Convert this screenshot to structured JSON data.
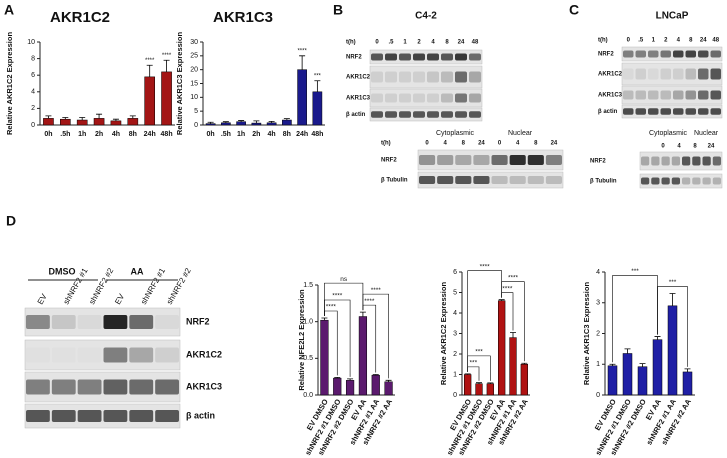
{
  "panels": {
    "a": "A",
    "b": "B",
    "c": "C",
    "d": "D"
  },
  "chart_data": [
    {
      "type": "bar",
      "title": "AKR1C2",
      "y_label": "Relative AKR1C2 Expression",
      "color": "#a31515",
      "categories": [
        "0h",
        ".5h",
        "1h",
        "2h",
        "4h",
        "8h",
        "24h",
        "48h"
      ],
      "values": [
        0.8,
        0.7,
        0.6,
        0.8,
        0.5,
        0.8,
        5.8,
        6.4
      ],
      "errors": [
        0.3,
        0.2,
        0.3,
        0.5,
        0.2,
        0.3,
        1.4,
        1.4
      ],
      "significance": [
        null,
        null,
        null,
        null,
        null,
        null,
        "****",
        "****"
      ],
      "ylim": [
        0,
        10
      ],
      "yticks": [
        0,
        2,
        4,
        6,
        8,
        10
      ]
    },
    {
      "type": "bar",
      "title": "AKR1C3",
      "y_label": "Relative AKR1C3 Expression",
      "color": "#1a1a8c",
      "categories": [
        "0h",
        ".5h",
        "1h",
        "2h",
        "4h",
        "8h",
        "24h",
        "48h"
      ],
      "values": [
        0.5,
        0.8,
        1.2,
        0.7,
        0.8,
        1.8,
        20,
        12
      ],
      "errors": [
        0.5,
        0.4,
        0.4,
        0.8,
        0.5,
        0.5,
        5,
        4
      ],
      "significance": [
        null,
        null,
        null,
        null,
        null,
        null,
        "****",
        "***"
      ],
      "ylim": [
        0,
        30
      ],
      "yticks": [
        0,
        5,
        10,
        15,
        20,
        25,
        30
      ]
    },
    {
      "type": "bar",
      "y_label": "Relative NFE2L2 Expression",
      "color": "#5b1a6e",
      "categories": [
        "EV DMSO",
        "shNRF2 #1 DMSO",
        "shNRF2 #2 DMSO",
        "EV AA",
        "shNRF2 #1 AA",
        "shNRF2 #2 AA"
      ],
      "values": [
        1.02,
        0.23,
        0.2,
        1.07,
        0.27,
        0.18
      ],
      "errors": [
        0.03,
        0.01,
        0.02,
        0.06,
        0.01,
        0.02
      ],
      "comparisons": [
        {
          "from": 0,
          "to": 1,
          "label": "****"
        },
        {
          "from": 3,
          "to": 4,
          "label": "****"
        },
        {
          "from": 0,
          "to": 2,
          "label": "****"
        },
        {
          "from": 3,
          "to": 5,
          "label": "****"
        },
        {
          "from": 0,
          "to": 3,
          "label": "ns"
        }
      ],
      "ylim": [
        0,
        1.5
      ],
      "yticks": [
        {
          "value": 0,
          "label": "0.0"
        },
        0.5,
        {
          "value": 1,
          "label": "1.0"
        },
        1.5
      ]
    },
    {
      "type": "bar",
      "y_label": "Relative AKR1C2 Expression",
      "color": "#b01212",
      "categories": [
        "EV DMSO",
        "shNRF2 #1 DMSO",
        "shNRF2 #2 DMSO",
        "EV AA",
        "shNRF2 #1 AA",
        "shNRF2 #2 AA"
      ],
      "values": [
        1.0,
        0.55,
        0.55,
        4.6,
        2.8,
        1.5
      ],
      "errors": [
        0.03,
        0.05,
        0.04,
        0.05,
        0.25,
        0.05
      ],
      "comparisons": [
        {
          "from": 0,
          "to": 1,
          "label": "***"
        },
        {
          "from": 3,
          "to": 4,
          "label": "****"
        },
        {
          "from": 0,
          "to": 2,
          "label": "***"
        },
        {
          "from": 3,
          "to": 5,
          "label": "****"
        },
        {
          "from": 0,
          "to": 3,
          "label": "****"
        }
      ],
      "ylim": [
        0,
        6
      ],
      "yticks": [
        0,
        1,
        2,
        3,
        4,
        5,
        6
      ]
    },
    {
      "type": "bar",
      "y_label": "Relative AKR1C3 Expression",
      "color": "#1f1fa5",
      "categories": [
        "EV DMSO",
        "shNRF2 #1 DMSO",
        "shNRF2 #2 DMSO",
        "EV AA",
        "shNRF2 #1 AA",
        "shNRF2 #2 AA"
      ],
      "values": [
        0.95,
        1.35,
        0.92,
        1.8,
        2.9,
        0.75
      ],
      "errors": [
        0.05,
        0.15,
        0.1,
        0.1,
        0.4,
        0.1
      ],
      "comparisons": [
        {
          "from": 3,
          "to": 5,
          "label": "***"
        },
        {
          "from": 0,
          "to": 3,
          "label": "***"
        }
      ],
      "ylim": [
        0,
        4
      ],
      "yticks": [
        0,
        1,
        2,
        3,
        4
      ]
    }
  ],
  "blots": {
    "b_top": {
      "title": "C4-2",
      "time_label": "t(h)",
      "lanes": [
        "0",
        ".5",
        "1",
        "2",
        "4",
        "8",
        "24",
        "48"
      ],
      "rows": [
        "NRF2",
        "AKR1C2",
        "AKR1C3",
        "β actin"
      ]
    },
    "c_top": {
      "title": "LNCaP",
      "time_label": "t(h)",
      "lanes": [
        "0",
        ".5",
        "1",
        "2",
        "4",
        "8",
        "24",
        "48"
      ],
      "rows": [
        "NRF2",
        "AKR1C2",
        "AKR1C3",
        "β actin"
      ]
    },
    "b_bottom": {
      "time_label": "t(h)",
      "groups": [
        "Cytoplasmic",
        "Nuclear"
      ],
      "lanes": [
        "0",
        "4",
        "8",
        "24",
        "0",
        "4",
        "8",
        "24"
      ],
      "rows": [
        "NRF2",
        "β Tubulin"
      ]
    },
    "c_bottom": {
      "groups": [
        "Cytoplasmic",
        "Nuclear"
      ],
      "lanes": [
        "0",
        "4",
        "8",
        "24"
      ],
      "rows": [
        "NRF2",
        "β Tubulin"
      ]
    },
    "d": {
      "groups": [
        "DMSO",
        "AA"
      ],
      "lanes": [
        "EV",
        "shNRF2 #1",
        "shNRF2 #2",
        "EV",
        "shNRF2 #1",
        "shNRF2 #2"
      ],
      "rows": [
        "NRF2",
        "AKR1C2",
        "AKR1C3",
        "β actin"
      ]
    }
  }
}
